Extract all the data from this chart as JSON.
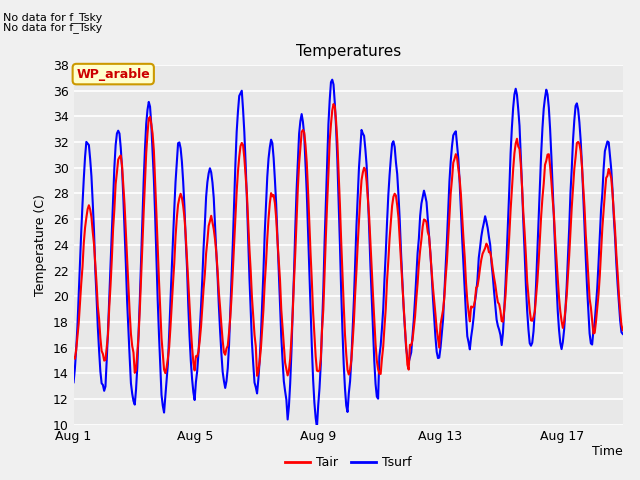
{
  "title": "Temperatures",
  "xlabel": "Time",
  "ylabel": "Temperature (C)",
  "ylim": [
    10,
    38
  ],
  "yticks": [
    10,
    12,
    14,
    16,
    18,
    20,
    22,
    24,
    26,
    28,
    30,
    32,
    34,
    36,
    38
  ],
  "bg_color": "#e8e8e8",
  "tair_color": "#ff0000",
  "tsurf_color": "#0000ff",
  "grid_color": "white",
  "annotation_text1": "No data for f_Tsky",
  "annotation_text2": "No data for f_Tsky",
  "wp_label": "WP_arable",
  "wp_label_color": "#cc0000",
  "wp_box_facecolor": "#ffffcc",
  "wp_box_edgecolor": "#cc9900",
  "xtick_positions": [
    0,
    4,
    8,
    12,
    16
  ],
  "xtick_labels": [
    "Aug 1",
    "Aug 5",
    "Aug 9",
    "Aug 13",
    "Aug 17"
  ],
  "n_days": 18,
  "tair_peaks": [
    27,
    31,
    34,
    28,
    26,
    32,
    28,
    33,
    35,
    30,
    28,
    26,
    31,
    24,
    32,
    31,
    32,
    30
  ],
  "tair_troughs": [
    15,
    15,
    14,
    14,
    15,
    16,
    14,
    14,
    14,
    14,
    14,
    16,
    18,
    19,
    18,
    18,
    18,
    17
  ],
  "tsurf_peaks": [
    32,
    33,
    35,
    32,
    30,
    36,
    32,
    34,
    37,
    33,
    32,
    28,
    33,
    26,
    36,
    36,
    35,
    32
  ],
  "tsurf_troughs": [
    13,
    12,
    11,
    12,
    13,
    13,
    12,
    10,
    11,
    12,
    15,
    15,
    16,
    17,
    16,
    16,
    16,
    17
  ],
  "line_width": 1.5,
  "title_fontsize": 11,
  "axis_label_fontsize": 9,
  "tick_fontsize": 9,
  "legend_fontsize": 9,
  "annot_fontsize": 8
}
